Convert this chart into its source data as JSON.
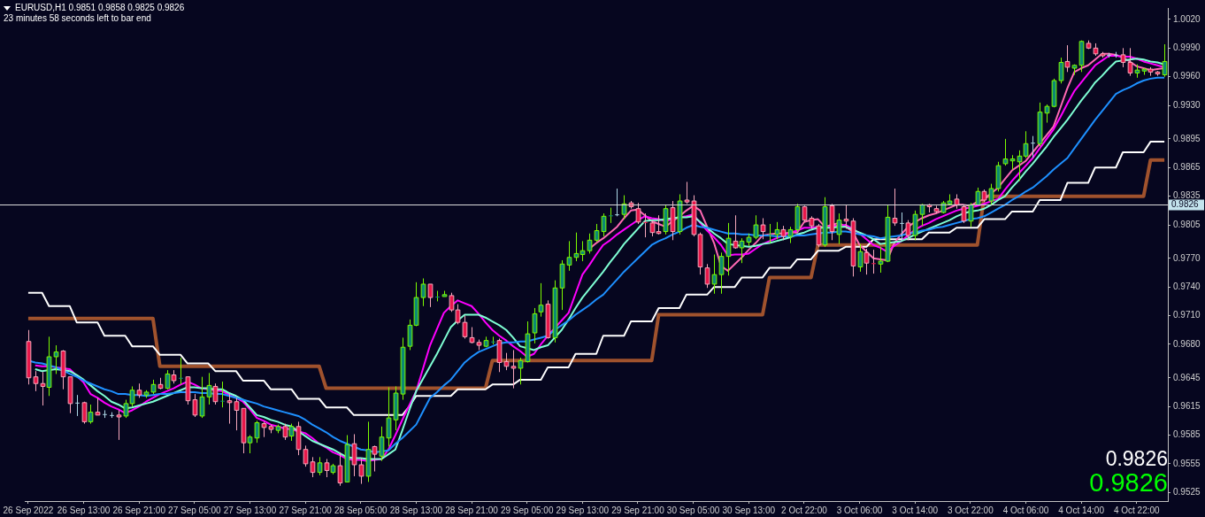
{
  "chart_data": {
    "type": "candlestick",
    "title": "EURUSD,H1 0.9851 0.9858 0.9825 0.9826",
    "subtitle": "23 minutes 58 seconds left to bar end",
    "categories": [
      "26 Sep 2022",
      null,
      null,
      null,
      null,
      null,
      null,
      null,
      "26 Sep 13:00",
      null,
      null,
      null,
      null,
      null,
      null,
      null,
      "26 Sep 21:00",
      null,
      null,
      null,
      null,
      null,
      null,
      null,
      "27 Sep 05:00",
      null,
      null,
      null,
      null,
      null,
      null,
      null,
      "27 Sep 13:00",
      null,
      null,
      null,
      null,
      null,
      null,
      null,
      "27 Sep 21:00",
      null,
      null,
      null,
      null,
      null,
      null,
      null,
      "28 Sep 05:00",
      null,
      null,
      null,
      null,
      null,
      null,
      null,
      "28 Sep 13:00",
      null,
      null,
      null,
      null,
      null,
      null,
      null,
      "28 Sep 21:00",
      null,
      null,
      null,
      null,
      null,
      null,
      null,
      "29 Sep 05:00",
      null,
      null,
      null,
      null,
      null,
      null,
      null,
      "29 Sep 13:00",
      null,
      null,
      null,
      null,
      null,
      null,
      null,
      "29 Sep 21:00",
      null,
      null,
      null,
      null,
      null,
      null,
      null,
      "30 Sep 05:00",
      null,
      null,
      null,
      null,
      null,
      null,
      null,
      "30 Sep 13:00",
      null,
      null,
      null,
      null,
      null,
      null,
      null,
      "2 Oct 22:00",
      null,
      null,
      null,
      null,
      null,
      null,
      null,
      "3 Oct 06:00",
      null,
      null,
      null,
      null,
      null,
      null,
      null,
      "3 Oct 14:00",
      null,
      null,
      null,
      null,
      null,
      null,
      null,
      "3 Oct 22:00",
      null,
      null,
      null,
      null,
      null,
      null,
      null,
      "4 Oct 06:00",
      null,
      null,
      null,
      null,
      null,
      null,
      null,
      "4 Oct 14:00",
      null,
      null,
      null,
      null,
      null,
      null,
      null,
      "4 Oct 22:00",
      null,
      null,
      null,
      null
    ],
    "ohlc": [
      [
        0.9683,
        0.9695,
        0.9638,
        0.9645
      ],
      [
        0.9646,
        0.9652,
        0.9631,
        0.9639
      ],
      [
        0.9639,
        0.9651,
        0.9616,
        0.9636
      ],
      [
        0.9635,
        0.9688,
        0.9626,
        0.9667
      ],
      [
        0.9667,
        0.9679,
        0.9649,
        0.9672
      ],
      [
        0.9673,
        0.9674,
        0.9633,
        0.9646
      ],
      [
        0.9646,
        0.9646,
        0.9608,
        0.9618
      ],
      [
        0.9619,
        0.9627,
        0.9605,
        0.9619
      ],
      [
        0.9619,
        0.962,
        0.9597,
        0.9599
      ],
      [
        0.9599,
        0.9617,
        0.9597,
        0.9609
      ],
      [
        0.9609,
        0.9624,
        0.9606,
        0.9606
      ],
      [
        0.9607,
        0.9611,
        0.9603,
        0.9607
      ],
      [
        0.9606,
        0.9609,
        0.9603,
        0.9606
      ],
      [
        0.9606,
        0.9611,
        0.958,
        0.9604
      ],
      [
        0.9605,
        0.9622,
        0.9603,
        0.9618
      ],
      [
        0.9618,
        0.9636,
        0.9615,
        0.9632
      ],
      [
        0.9632,
        0.9639,
        0.9624,
        0.9627
      ],
      [
        0.9627,
        0.9632,
        0.9624,
        0.963
      ],
      [
        0.963,
        0.9643,
        0.9628,
        0.9638
      ],
      [
        0.9638,
        0.9645,
        0.9633,
        0.9634
      ],
      [
        0.9634,
        0.9653,
        0.9633,
        0.9649
      ],
      [
        0.9648,
        0.9653,
        0.9639,
        0.9642
      ],
      [
        0.9644,
        0.9666,
        0.9638,
        0.9645
      ],
      [
        0.9646,
        0.9646,
        0.9617,
        0.9621
      ],
      [
        0.9622,
        0.9628,
        0.9604,
        0.9606
      ],
      [
        0.9605,
        0.9646,
        0.9603,
        0.9625
      ],
      [
        0.9625,
        0.965,
        0.9617,
        0.9637
      ],
      [
        0.9636,
        0.9639,
        0.9617,
        0.962
      ],
      [
        0.962,
        0.9641,
        0.9614,
        0.9621
      ],
      [
        0.9621,
        0.9628,
        0.9597,
        0.9619
      ],
      [
        0.962,
        0.9624,
        0.959,
        0.9611
      ],
      [
        0.9613,
        0.9613,
        0.9566,
        0.9577
      ],
      [
        0.9577,
        0.9585,
        0.9566,
        0.9583
      ],
      [
        0.9582,
        0.96,
        0.9577,
        0.9598
      ],
      [
        0.9597,
        0.9599,
        0.9583,
        0.9593
      ],
      [
        0.9594,
        0.9596,
        0.9587,
        0.9591
      ],
      [
        0.959,
        0.9596,
        0.9587,
        0.9594
      ],
      [
        0.9594,
        0.9597,
        0.958,
        0.9583
      ],
      [
        0.9584,
        0.9597,
        0.9579,
        0.9594
      ],
      [
        0.9594,
        0.9599,
        0.9564,
        0.957
      ],
      [
        0.957,
        0.9574,
        0.9552,
        0.9555
      ],
      [
        0.9557,
        0.9562,
        0.9541,
        0.9546
      ],
      [
        0.9546,
        0.9562,
        0.9543,
        0.9556
      ],
      [
        0.9556,
        0.956,
        0.9541,
        0.9548
      ],
      [
        0.9546,
        0.9555,
        0.9544,
        0.9553
      ],
      [
        0.9553,
        0.9567,
        0.9532,
        0.9535
      ],
      [
        0.9536,
        0.9585,
        0.9536,
        0.9575
      ],
      [
        0.9576,
        0.9586,
        0.9542,
        0.9554
      ],
      [
        0.9554,
        0.9561,
        0.9534,
        0.9542
      ],
      [
        0.9542,
        0.9599,
        0.9536,
        0.957
      ],
      [
        0.9573,
        0.9574,
        0.9547,
        0.9565
      ],
      [
        0.9563,
        0.9594,
        0.9558,
        0.9583
      ],
      [
        0.9582,
        0.9635,
        0.9573,
        0.9603
      ],
      [
        0.9601,
        0.9636,
        0.959,
        0.9629
      ],
      [
        0.9628,
        0.9687,
        0.9622,
        0.9677
      ],
      [
        0.9678,
        0.9706,
        0.9674,
        0.97
      ],
      [
        0.97,
        0.9745,
        0.9699,
        0.9729
      ],
      [
        0.9729,
        0.9749,
        0.972,
        0.9743
      ],
      [
        0.9743,
        0.9743,
        0.9719,
        0.9729
      ],
      [
        0.9729,
        0.9736,
        0.9725,
        0.973
      ],
      [
        0.973,
        0.9736,
        0.973,
        0.9732
      ],
      [
        0.9731,
        0.9734,
        0.9714,
        0.9716
      ],
      [
        0.9716,
        0.9722,
        0.9701,
        0.9703
      ],
      [
        0.9703,
        0.971,
        0.9686,
        0.9688
      ],
      [
        0.9687,
        0.9698,
        0.9681,
        0.9682
      ],
      [
        0.9682,
        0.9685,
        0.9674,
        0.9679
      ],
      [
        0.9678,
        0.9688,
        0.9677,
        0.9684
      ],
      [
        0.9682,
        0.9688,
        0.968,
        0.9683
      ],
      [
        0.9684,
        0.9686,
        0.9651,
        0.9661
      ],
      [
        0.9662,
        0.9671,
        0.9653,
        0.9657
      ],
      [
        0.9657,
        0.9674,
        0.9634,
        0.9655
      ],
      [
        0.9655,
        0.9666,
        0.9638,
        0.9663
      ],
      [
        0.9662,
        0.9704,
        0.9661,
        0.9691
      ],
      [
        0.9692,
        0.9718,
        0.9681,
        0.9712
      ],
      [
        0.9714,
        0.9744,
        0.9709,
        0.9721
      ],
      [
        0.9722,
        0.9726,
        0.9686,
        0.9687
      ],
      [
        0.9687,
        0.9747,
        0.9682,
        0.9739
      ],
      [
        0.9739,
        0.9768,
        0.9716,
        0.9764
      ],
      [
        0.9763,
        0.9788,
        0.9757,
        0.9771
      ],
      [
        0.9771,
        0.9797,
        0.9767,
        0.9775
      ],
      [
        0.9774,
        0.9788,
        0.9767,
        0.9778
      ],
      [
        0.9778,
        0.9796,
        0.9775,
        0.9789
      ],
      [
        0.9789,
        0.9806,
        0.9787,
        0.9799
      ],
      [
        0.9798,
        0.9817,
        0.9793,
        0.9814
      ],
      [
        0.9814,
        0.9823,
        0.9807,
        0.9815
      ],
      [
        0.9816,
        0.9843,
        0.9814,
        0.9816
      ],
      [
        0.9816,
        0.9836,
        0.9811,
        0.9827
      ],
      [
        0.9828,
        0.983,
        0.9822,
        0.9824
      ],
      [
        0.9822,
        0.9828,
        0.9806,
        0.9808
      ],
      [
        0.9808,
        0.9817,
        0.9792,
        0.9807
      ],
      [
        0.9807,
        0.981,
        0.9793,
        0.9797
      ],
      [
        0.9798,
        0.9815,
        0.9795,
        0.9796
      ],
      [
        0.9798,
        0.9826,
        0.9795,
        0.9822
      ],
      [
        0.9823,
        0.983,
        0.9789,
        0.9798
      ],
      [
        0.9798,
        0.9837,
        0.9795,
        0.983
      ],
      [
        0.9831,
        0.985,
        0.9827,
        0.9829
      ],
      [
        0.983,
        0.9836,
        0.9793,
        0.9795
      ],
      [
        0.9795,
        0.9797,
        0.9753,
        0.9761
      ],
      [
        0.976,
        0.9764,
        0.9739,
        0.9743
      ],
      [
        0.9743,
        0.9774,
        0.9733,
        0.9753
      ],
      [
        0.9753,
        0.9776,
        0.9733,
        0.9772
      ],
      [
        0.9772,
        0.9807,
        0.9752,
        0.9791
      ],
      [
        0.9788,
        0.9815,
        0.978,
        0.9781
      ],
      [
        0.9781,
        0.9791,
        0.9765,
        0.9788
      ],
      [
        0.9787,
        0.9796,
        0.9783,
        0.9792
      ],
      [
        0.9792,
        0.9815,
        0.979,
        0.9805
      ],
      [
        0.9805,
        0.9812,
        0.979,
        0.9798
      ],
      [
        0.9794,
        0.9806,
        0.9786,
        0.9795
      ],
      [
        0.9795,
        0.9808,
        0.979,
        0.98
      ],
      [
        0.98,
        0.9804,
        0.9789,
        0.9793
      ],
      [
        0.9793,
        0.9803,
        0.9786,
        0.98
      ],
      [
        0.98,
        0.9827,
        0.9798,
        0.9824
      ],
      [
        0.9824,
        0.9825,
        0.9808,
        0.981
      ],
      [
        0.9812,
        0.9814,
        0.9801,
        0.9804
      ],
      [
        0.9804,
        0.9806,
        0.9782,
        0.9784
      ],
      [
        0.9784,
        0.9834,
        0.9782,
        0.9824
      ],
      [
        0.9825,
        0.9827,
        0.9789,
        0.9798
      ],
      [
        0.9795,
        0.9817,
        0.9785,
        0.981
      ],
      [
        0.9811,
        0.9826,
        0.9801,
        0.9809
      ],
      [
        0.9809,
        0.9812,
        0.9751,
        0.9762
      ],
      [
        0.9761,
        0.9785,
        0.9756,
        0.9777
      ],
      [
        0.9776,
        0.978,
        0.9753,
        0.9765
      ],
      [
        0.9765,
        0.9779,
        0.9754,
        0.9764
      ],
      [
        0.9764,
        0.9782,
        0.9755,
        0.9767
      ],
      [
        0.9767,
        0.9826,
        0.9766,
        0.9813
      ],
      [
        0.9812,
        0.9843,
        0.9804,
        0.9807
      ],
      [
        0.9807,
        0.9818,
        0.9789,
        0.9807
      ],
      [
        0.9807,
        0.981,
        0.9789,
        0.9794
      ],
      [
        0.9794,
        0.982,
        0.9789,
        0.9816
      ],
      [
        0.9816,
        0.9827,
        0.9804,
        0.9826
      ],
      [
        0.9826,
        0.9827,
        0.9818,
        0.9824
      ],
      [
        0.9822,
        0.9825,
        0.9817,
        0.9819
      ],
      [
        0.9818,
        0.983,
        0.9817,
        0.9828
      ],
      [
        0.9827,
        0.9837,
        0.9826,
        0.983
      ],
      [
        0.9832,
        0.9837,
        0.9822,
        0.9826
      ],
      [
        0.9824,
        0.9826,
        0.9807,
        0.9809
      ],
      [
        0.9809,
        0.9828,
        0.9803,
        0.9826
      ],
      [
        0.9826,
        0.9844,
        0.9826,
        0.984
      ],
      [
        0.984,
        0.9842,
        0.9829,
        0.9831
      ],
      [
        0.983,
        0.9848,
        0.9826,
        0.9843
      ],
      [
        0.9843,
        0.9871,
        0.984,
        0.9867
      ],
      [
        0.9869,
        0.9895,
        0.9867,
        0.9874
      ],
      [
        0.9872,
        0.9878,
        0.9863,
        0.9874
      ],
      [
        0.9871,
        0.9883,
        0.9851,
        0.9877
      ],
      [
        0.9877,
        0.9903,
        0.9875,
        0.989
      ],
      [
        0.9891,
        0.9898,
        0.9875,
        0.9891
      ],
      [
        0.989,
        0.9933,
        0.9887,
        0.9923
      ],
      [
        0.9922,
        0.9931,
        0.9912,
        0.9929
      ],
      [
        0.9929,
        0.9958,
        0.9928,
        0.9956
      ],
      [
        0.9956,
        0.998,
        0.9953,
        0.9975
      ],
      [
        0.9976,
        0.9993,
        0.9965,
        0.997
      ],
      [
        0.9969,
        0.9973,
        0.9962,
        0.9972
      ],
      [
        0.9972,
        0.9998,
        0.9965,
        0.9997
      ],
      [
        0.9995,
        0.9998,
        0.9989,
        0.999
      ],
      [
        0.999,
        0.9995,
        0.9982,
        0.9984
      ],
      [
        0.9984,
        0.9986,
        0.998,
        0.9982
      ],
      [
        0.9983,
        0.9985,
        0.998,
        0.9983
      ],
      [
        0.9983,
        0.9986,
        0.998,
        0.9983
      ],
      [
        0.9983,
        0.999,
        0.997,
        0.9975
      ],
      [
        0.9975,
        0.999,
        0.9961,
        0.9964
      ],
      [
        0.9964,
        0.9973,
        0.9959,
        0.9967
      ],
      [
        0.9966,
        0.9969,
        0.9962,
        0.9968
      ],
      [
        0.9968,
        0.997,
        0.9961,
        0.9965
      ],
      [
        0.9965,
        0.9966,
        0.9961,
        0.9963
      ],
      [
        0.9962,
        0.9994,
        0.996,
        0.9976
      ]
    ],
    "series": [
      {
        "type": "line",
        "color": "#1e90ff",
        "values": [
          0.9663,
          0.9661,
          0.966,
          0.9658,
          0.9656,
          0.9653,
          0.9649,
          0.9646,
          0.9642,
          0.9639,
          0.9636,
          0.9633,
          0.9631,
          0.9628,
          0.9628,
          0.9627,
          0.9627,
          0.9626,
          0.9627,
          0.9628,
          0.9628,
          0.9629,
          0.963,
          0.963,
          0.963,
          0.9629,
          0.9629,
          0.9628,
          0.9628,
          0.9626,
          0.9624,
          0.9622,
          0.962,
          0.9618,
          0.9615,
          0.9613,
          0.9611,
          0.9609,
          0.9607,
          0.9605,
          0.9601,
          0.9596,
          0.9592,
          0.9588,
          0.9583,
          0.9579,
          0.9576,
          0.9573,
          0.957,
          0.9569,
          0.9567,
          0.9568,
          0.9569,
          0.9576,
          0.9582,
          0.9589,
          0.9596,
          0.961,
          0.9624,
          0.963,
          0.9637,
          0.9643,
          0.9652,
          0.9661,
          0.9667,
          0.9672,
          0.9675,
          0.9678,
          0.9681,
          0.9682,
          0.9682,
          0.9683,
          0.9683,
          0.9685,
          0.9687,
          0.9689,
          0.9695,
          0.97,
          0.9705,
          0.9711,
          0.9716,
          0.9721,
          0.9727,
          0.9732,
          0.974,
          0.9748,
          0.9756,
          0.9763,
          0.977,
          0.9777,
          0.9784,
          0.9788,
          0.9791,
          0.9795,
          0.9798,
          0.9802,
          0.9805,
          0.9803,
          0.9802,
          0.98,
          0.9798,
          0.9796,
          0.9796,
          0.9795,
          0.9795,
          0.9794,
          0.9794,
          0.9794,
          0.9793,
          0.9793,
          0.9793,
          0.9794,
          0.9794,
          0.9795,
          0.9796,
          0.9797,
          0.9797,
          0.9798,
          0.9798,
          0.9797,
          0.9795,
          0.9794,
          0.9793,
          0.9791,
          0.9792,
          0.9793,
          0.9794,
          0.9796,
          0.9797,
          0.9799,
          0.98,
          0.9802,
          0.9803,
          0.9805,
          0.9807,
          0.9809,
          0.9811,
          0.9812,
          0.9814,
          0.9818,
          0.9822,
          0.9826,
          0.9831,
          0.9835,
          0.984,
          0.9844,
          0.985,
          0.9856,
          0.9863,
          0.9869,
          0.9875,
          0.9885,
          0.9895,
          0.9905,
          0.9915,
          0.9924,
          0.9933,
          0.9942,
          0.9946,
          0.9949,
          0.9953,
          0.9956,
          0.9958,
          0.9959,
          0.9959
        ]
      },
      {
        "type": "line",
        "color": "#7fffd4",
        "values": [
          null,
          0.9654,
          0.9652,
          0.9653,
          0.9654,
          0.9653,
          0.9652,
          0.9648,
          0.9643,
          0.9637,
          0.9631,
          0.9626,
          0.962,
          0.9617,
          0.9613,
          0.9614,
          0.9616,
          0.9618,
          0.962,
          0.9623,
          0.9626,
          0.9629,
          0.9632,
          0.9635,
          0.9635,
          0.9634,
          0.9634,
          0.9633,
          0.9633,
          0.9629,
          0.9626,
          0.9622,
          0.9614,
          0.9606,
          0.9604,
          0.9601,
          0.9599,
          0.9596,
          0.9594,
          0.9589,
          0.9584,
          0.9579,
          0.9576,
          0.9573,
          0.957,
          0.9566,
          0.9562,
          0.9561,
          0.9561,
          0.956,
          0.956,
          0.956,
          0.9565,
          0.957,
          0.959,
          0.9611,
          0.9631,
          0.9644,
          0.9657,
          0.967,
          0.9684,
          0.9698,
          0.9705,
          0.9711,
          0.9711,
          0.9711,
          0.9708,
          0.9704,
          0.97,
          0.9695,
          0.9687,
          0.9678,
          0.9676,
          0.9674,
          0.9677,
          0.9679,
          0.9687,
          0.9695,
          0.9706,
          0.9718,
          0.9729,
          0.9738,
          0.9747,
          0.9756,
          0.9766,
          0.9775,
          0.9785,
          0.9793,
          0.9801,
          0.9809,
          0.981,
          0.981,
          0.9811,
          0.9812,
          0.9813,
          0.9813,
          0.9814,
          0.9808,
          0.9802,
          0.9796,
          0.9791,
          0.9785,
          0.9784,
          0.9783,
          0.9782,
          0.9783,
          0.9785,
          0.9786,
          0.9788,
          0.979,
          0.9792,
          0.9795,
          0.9797,
          0.98,
          0.9802,
          0.9802,
          0.9802,
          0.9803,
          0.9803,
          0.98,
          0.9797,
          0.9794,
          0.979,
          0.9785,
          0.9786,
          0.9787,
          0.9788,
          0.9791,
          0.9795,
          0.9798,
          0.9801,
          0.9804,
          0.9807,
          0.981,
          0.9814,
          0.9817,
          0.9819,
          0.982,
          0.9822,
          0.9826,
          0.9831,
          0.9835,
          0.9844,
          0.9852,
          0.9861,
          0.9869,
          0.9878,
          0.9887,
          0.9897,
          0.9906,
          0.9915,
          0.9925,
          0.9935,
          0.9944,
          0.9954,
          0.9961,
          0.9969,
          0.9976,
          0.9977,
          0.9978,
          0.9979,
          0.9978,
          0.9976,
          0.9975,
          0.9973
        ]
      },
      {
        "type": "line",
        "color": "#ff00ff",
        "values": [
          null,
          0.9658,
          0.9657,
          0.9657,
          0.9656,
          0.9655,
          0.9654,
          0.9647,
          0.964,
          0.9628,
          0.9624,
          0.9619,
          0.9615,
          0.9612,
          0.9608,
          0.9611,
          0.9615,
          0.962,
          0.9624,
          0.9628,
          0.9631,
          0.9634,
          0.9638,
          0.9641,
          0.9638,
          0.9634,
          0.9633,
          0.9632,
          0.9631,
          0.9627,
          0.9624,
          0.962,
          0.9612,
          0.9603,
          0.96,
          0.9596,
          0.9594,
          0.9592,
          0.9591,
          0.9589,
          0.9587,
          0.9582,
          0.9576,
          0.9572,
          0.9567,
          0.9564,
          0.956,
          0.9559,
          0.9559,
          0.9558,
          0.9559,
          0.956,
          0.957,
          0.9585,
          0.9601,
          0.9616,
          0.9631,
          0.9655,
          0.9679,
          0.9696,
          0.9713,
          0.972,
          0.9726,
          0.9723,
          0.972,
          0.9712,
          0.9703,
          0.9695,
          0.9689,
          0.9684,
          0.9678,
          0.9673,
          0.9667,
          0.967,
          0.968,
          0.9689,
          0.9697,
          0.9705,
          0.9713,
          0.9733,
          0.9753,
          0.9763,
          0.9774,
          0.9784,
          0.9789,
          0.9795,
          0.98,
          0.9805,
          0.981,
          0.9814,
          0.9812,
          0.9811,
          0.9809,
          0.9811,
          0.9813,
          0.9814,
          0.9816,
          0.9807,
          0.9799,
          0.9792,
          0.9784,
          0.9773,
          0.9774,
          0.9774,
          0.9775,
          0.978,
          0.9785,
          0.9788,
          0.9791,
          0.9794,
          0.9797,
          0.9799,
          0.9802,
          0.9802,
          0.9803,
          0.9803,
          0.9804,
          0.9804,
          0.9805,
          0.9801,
          0.9796,
          0.979,
          0.9784,
          0.9781,
          0.9777,
          0.9783,
          0.9788,
          0.9794,
          0.98,
          0.9804,
          0.9807,
          0.9811,
          0.9814,
          0.9817,
          0.982,
          0.9822,
          0.9823,
          0.9825,
          0.9827,
          0.983,
          0.9832,
          0.9842,
          0.9851,
          0.9859,
          0.9867,
          0.9875,
          0.9885,
          0.9895,
          0.9905,
          0.9918,
          0.9932,
          0.9945,
          0.9954,
          0.9963,
          0.9972,
          0.9977,
          0.9982,
          0.9982,
          0.9981,
          0.9981,
          0.9979,
          0.9976,
          0.9974,
          0.9972,
          0.997
        ]
      },
      {
        "type": "line",
        "color": "#ff69b4",
        "values": [
          null,
          null,
          null,
          null,
          null,
          null,
          null,
          null,
          null,
          null,
          null,
          null,
          null,
          null,
          null,
          null,
          null,
          null,
          null,
          null,
          null,
          null,
          null,
          null,
          null,
          null,
          null,
          null,
          null,
          null,
          null,
          null,
          null,
          null,
          null,
          null,
          null,
          null,
          null,
          null,
          null,
          null,
          null,
          null,
          null,
          null,
          null,
          null,
          null,
          null,
          null,
          null,
          null,
          null,
          null,
          null,
          null,
          null,
          null,
          null,
          null,
          null,
          null,
          null,
          null,
          null,
          null,
          null,
          null,
          null,
          null,
          null,
          null,
          null,
          null,
          null,
          null,
          null,
          null,
          null,
          null,
          0.978,
          0.9786,
          0.9791,
          0.9797,
          0.9803,
          0.9812,
          0.982,
          0.9821,
          0.9815,
          0.9809,
          0.9806,
          0.9803,
          0.9809,
          0.9814,
          0.982,
          0.9825,
          0.982,
          0.9803,
          0.9786,
          0.9762,
          0.9757,
          0.9764,
          0.9771,
          0.9779,
          0.9786,
          0.9794,
          0.9795,
          0.9796,
          0.9796,
          0.9797,
          0.9797,
          0.9808,
          0.981,
          0.9811,
          0.9803,
          0.9805,
          0.9807,
          0.9803,
          0.9798,
          0.9784,
          0.9777,
          0.977,
          0.9769,
          0.9768,
          0.9786,
          0.9795,
          0.9803,
          0.9808,
          0.9812,
          0.9815,
          0.9817,
          0.982,
          0.9823,
          0.9826,
          0.9826,
          0.9825,
          0.9829,
          0.9832,
          0.9838,
          0.9844,
          0.9853,
          0.9862,
          0.9867,
          0.9872,
          0.9881,
          0.989,
          0.9899,
          0.9908,
          0.9928,
          0.9948,
          0.9965,
          0.9969,
          0.9972,
          0.9978,
          0.9984,
          0.9984,
          0.9983,
          0.998,
          0.9976,
          0.9971,
          0.9969,
          0.9967,
          0.9968,
          0.9969
        ]
      },
      {
        "type": "line",
        "color": "#ffffff",
        "values": [
          0.9734,
          0.9734,
          0.9734,
          0.972,
          0.972,
          0.972,
          0.972,
          0.9703,
          0.9703,
          0.9703,
          0.9703,
          0.9689,
          0.9689,
          0.9689,
          0.9689,
          0.9678,
          0.9678,
          0.9678,
          0.9678,
          0.9669,
          0.9669,
          0.9669,
          0.9669,
          0.966,
          0.966,
          0.966,
          0.966,
          0.9652,
          0.9652,
          0.9652,
          0.9652,
          0.9642,
          0.9642,
          0.9642,
          0.9642,
          0.9633,
          0.9633,
          0.9633,
          0.9633,
          0.9623,
          0.9623,
          0.9623,
          0.9623,
          0.9614,
          0.9614,
          0.9614,
          0.9614,
          0.9606,
          0.9606,
          0.9606,
          0.9606,
          0.9606,
          0.9606,
          0.9606,
          0.9606,
          0.9615,
          0.9626,
          0.9626,
          0.9626,
          0.9626,
          0.9626,
          0.9626,
          0.9633,
          0.9633,
          0.9633,
          0.9633,
          0.9633,
          0.9638,
          0.9638,
          0.9638,
          0.9638,
          0.9643,
          0.9643,
          0.9643,
          0.9643,
          0.9656,
          0.9656,
          0.9656,
          0.9656,
          0.967,
          0.967,
          0.967,
          0.967,
          0.9689,
          0.9689,
          0.9689,
          0.9689,
          0.9704,
          0.9704,
          0.9704,
          0.9704,
          0.9718,
          0.9718,
          0.9718,
          0.9718,
          0.9732,
          0.9732,
          0.9732,
          0.9732,
          0.974,
          0.974,
          0.974,
          0.974,
          0.975,
          0.975,
          0.975,
          0.975,
          0.976,
          0.976,
          0.976,
          0.976,
          0.9769,
          0.9769,
          0.9769,
          0.9778,
          0.9778,
          0.9778,
          0.9778,
          0.9782,
          0.9782,
          0.9782,
          0.9782,
          0.979,
          0.979,
          0.979,
          0.979,
          0.979,
          0.979,
          0.979,
          0.979,
          0.9797,
          0.9797,
          0.9797,
          0.9797,
          0.9802,
          0.9802,
          0.9802,
          0.9802,
          0.9811,
          0.9811,
          0.9811,
          0.9811,
          0.9819,
          0.9819,
          0.9819,
          0.9819,
          0.9831,
          0.9831,
          0.9831,
          0.9831,
          0.9849,
          0.9849,
          0.9849,
          0.9849,
          0.9865,
          0.9865,
          0.9865,
          0.9865,
          0.9881,
          0.9881,
          0.9881,
          0.9881,
          0.9892,
          0.9892,
          0.9892
        ]
      },
      {
        "type": "line",
        "color": "#a0522d",
        "values": [
          0.9707,
          0.9707,
          0.9707,
          0.9707,
          0.9707,
          0.9707,
          0.9707,
          0.9707,
          0.9707,
          0.9707,
          0.9707,
          0.9707,
          0.9707,
          0.9707,
          0.9707,
          0.9707,
          0.9707,
          0.9707,
          0.9707,
          0.9657,
          0.9657,
          0.9657,
          0.9657,
          0.9657,
          0.9657,
          0.9657,
          0.9657,
          0.9657,
          0.9657,
          0.9657,
          0.9657,
          0.9657,
          0.9657,
          0.9657,
          0.9657,
          0.9657,
          0.9657,
          0.9657,
          0.9657,
          0.9657,
          0.9657,
          0.9657,
          0.9657,
          0.9634,
          0.9634,
          0.9634,
          0.9634,
          0.9634,
          0.9634,
          0.9634,
          0.9634,
          0.9634,
          0.9634,
          0.9634,
          0.9634,
          0.9634,
          0.9634,
          0.9634,
          0.9634,
          0.9634,
          0.9634,
          0.9634,
          0.9634,
          0.9634,
          0.9634,
          0.9634,
          0.9634,
          0.9663,
          0.9663,
          0.9663,
          0.9663,
          0.9663,
          0.9663,
          0.9663,
          0.9663,
          0.9663,
          0.9663,
          0.9663,
          0.9663,
          0.9663,
          0.9663,
          0.9663,
          0.9663,
          0.9663,
          0.9663,
          0.9663,
          0.9663,
          0.9663,
          0.9663,
          0.9663,
          0.9663,
          0.9711,
          0.9711,
          0.9711,
          0.9711,
          0.9711,
          0.9711,
          0.9711,
          0.9711,
          0.9711,
          0.9711,
          0.9711,
          0.9711,
          0.9711,
          0.9711,
          0.9711,
          0.9711,
          0.975,
          0.975,
          0.975,
          0.975,
          0.975,
          0.975,
          0.975,
          0.9784,
          0.9784,
          0.9784,
          0.9784,
          0.9784,
          0.9784,
          0.9784,
          0.9784,
          0.9784,
          0.9784,
          0.9784,
          0.9784,
          0.9784,
          0.9784,
          0.9784,
          0.9784,
          0.9784,
          0.9784,
          0.9784,
          0.9784,
          0.9784,
          0.9784,
          0.9784,
          0.9784,
          0.9835,
          0.9835,
          0.9835,
          0.9835,
          0.9835,
          0.9835,
          0.9835,
          0.9835,
          0.9835,
          0.9835,
          0.9835,
          0.9835,
          0.9835,
          0.9835,
          0.9835,
          0.9835,
          0.9835,
          0.9835,
          0.9835,
          0.9835,
          0.9835,
          0.9835,
          0.9835,
          0.9835,
          0.9873,
          0.9873,
          0.9873
        ]
      }
    ],
    "ylim": [
      0.9516,
      1.0032
    ],
    "yticks": [
      {
        "value": 1.002,
        "label": "1.0020"
      },
      {
        "value": 0.999,
        "label": "0.9990"
      },
      {
        "value": 0.996,
        "label": "0.9960"
      },
      {
        "value": 0.993,
        "label": "0.9930"
      },
      {
        "value": 0.9895,
        "label": "0.9895"
      },
      {
        "value": 0.9865,
        "label": "0.9865"
      },
      {
        "value": 0.9835,
        "label": "0.9835"
      },
      {
        "value": 0.9805,
        "label": "0.9805"
      },
      {
        "value": 0.977,
        "label": "0.9770"
      },
      {
        "value": 0.974,
        "label": "0.9740"
      },
      {
        "value": 0.971,
        "label": "0.9710"
      },
      {
        "value": 0.968,
        "label": "0.9680"
      },
      {
        "value": 0.9645,
        "label": "0.9645"
      },
      {
        "value": 0.9615,
        "label": "0.9615"
      },
      {
        "value": 0.9585,
        "label": "0.9585"
      },
      {
        "value": 0.9555,
        "label": "0.9555"
      },
      {
        "value": 0.9525,
        "label": "0.9525"
      }
    ],
    "ref_lines": [
      {
        "axis": "y",
        "value": 0.9826,
        "label": "0.9826",
        "color": "#dcdcdc"
      }
    ],
    "annotations": [
      "0.9826",
      "0.9826"
    ]
  }
}
